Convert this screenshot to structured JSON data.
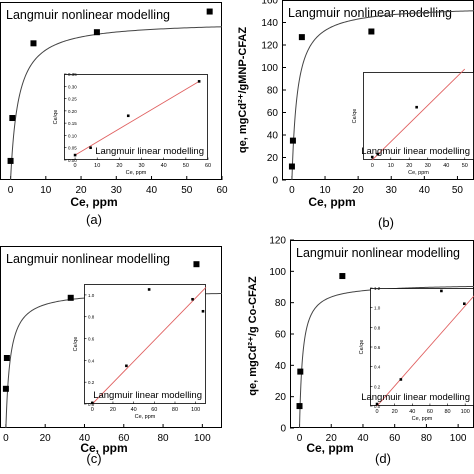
{
  "chart_data": [
    {
      "type": "scatter",
      "panel_label": "(a)",
      "title": "Langmuir nonlinear modelling",
      "xlabel": "Ce, ppm",
      "ylabel": "",
      "xlim": [
        -3,
        60
      ],
      "ylim": [
        0,
        1.12
      ],
      "xticks": [
        "0",
        "10",
        "20",
        "30",
        "40",
        "50",
        "60"
      ],
      "yticks": [],
      "series": [
        {
          "kind": "points",
          "x": [
            0,
            0.5,
            6.5,
            24.5,
            56.5
          ],
          "y": [
            0.12,
            0.39,
            0.86,
            0.93,
            1.06
          ]
        },
        {
          "kind": "model-curve",
          "qmax": 1.0,
          "KL": 0.45
        }
      ],
      "inset": {
        "title": "Langmuir linear modelling",
        "xlabel": "Ce, ppm",
        "ylabel": "Ce/qe",
        "xlim": [
          -5,
          60
        ],
        "ylim": [
          0,
          0.35
        ],
        "xticks": [
          "0",
          "10",
          "20",
          "30",
          "40",
          "50",
          "60"
        ],
        "yticks": [
          "0.00",
          "0.05",
          "0.10",
          "0.15",
          "0.20",
          "0.25",
          "0.30",
          "0.35"
        ],
        "points": {
          "x": [
            0,
            7,
            24,
            56
          ],
          "y": [
            0.02,
            0.05,
            0.18,
            0.32
          ]
        },
        "fit": {
          "x": [
            0,
            56
          ],
          "y": [
            0.02,
            0.32
          ]
        }
      }
    },
    {
      "type": "scatter",
      "panel_label": "(b)",
      "title": "Langmuir nonlinear modelling",
      "xlabel": "Ce, ppm",
      "ylabel": "qe, mgCd²⁺/gMNP-CFAZ",
      "xlim": [
        -3,
        55
      ],
      "ylim": [
        0,
        160
      ],
      "xticks": [
        "0",
        "10",
        "20",
        "30",
        "40",
        "50"
      ],
      "yticks": [
        "0",
        "20",
        "40",
        "60",
        "80",
        "100",
        "120",
        "140",
        "160"
      ],
      "series": [
        {
          "kind": "points",
          "x": [
            0,
            0.3,
            3,
            24
          ],
          "y": [
            12,
            35,
            127,
            132
          ]
        },
        {
          "kind": "model-curve",
          "qmax": 155,
          "KL": 0.6
        }
      ],
      "inset": {
        "title": "Langmuir linear modelling",
        "xlabel": "Ce, ppm",
        "ylabel": "Ce/qe",
        "xlim": [
          -5,
          55
        ],
        "ylim": [
          0,
          0.3
        ],
        "xticks": [
          "0",
          "10",
          "20",
          "30",
          "40",
          "50"
        ],
        "yticks": [],
        "points": {
          "x": [
            0,
            3,
            24
          ],
          "y": [
            0.01,
            0.02,
            0.18
          ]
        },
        "fit": {
          "x": [
            0,
            50
          ],
          "y": [
            0.0,
            0.31
          ]
        }
      }
    },
    {
      "type": "scatter",
      "panel_label": "(c)",
      "title": "Langmuir nonlinear modelling",
      "xlabel": "Ce, ppm",
      "ylabel": "",
      "xlim": [
        -3,
        110
      ],
      "ylim": [
        0,
        1.3
      ],
      "xticks": [
        "0",
        "20",
        "40",
        "60",
        "80",
        "100"
      ],
      "yticks": [],
      "series": [
        {
          "kind": "points",
          "x": [
            0,
            0.5,
            33,
            97
          ],
          "y": [
            0.28,
            0.5,
            0.93,
            1.17
          ]
        },
        {
          "kind": "model-curve",
          "qmax": 0.98,
          "KL": 0.45
        }
      ],
      "inset": {
        "title": "Langmuir linear modelling",
        "xlabel": "Ce, ppm",
        "ylabel": "Ce/qe",
        "xlim": [
          -8,
          110
        ],
        "ylim": [
          0,
          1.1
        ],
        "xticks": [
          "0",
          "20",
          "40",
          "60",
          "80",
          "100"
        ],
        "yticks": [
          "0.0",
          "0.2",
          "0.4",
          "0.6",
          "0.8",
          "1.0"
        ],
        "points": {
          "x": [
            0,
            33,
            55,
            97,
            112
          ],
          "y": [
            0.01,
            0.35,
            1.05,
            0.96,
            0.85
          ]
        },
        "fit": {
          "x": [
            0,
            110
          ],
          "y": [
            0.0,
            1.07
          ]
        }
      }
    },
    {
      "type": "scatter",
      "panel_label": "(d)",
      "title": "Langmuir nonlinear modelling",
      "xlabel": "Ce, ppm",
      "ylabel": "qe, mgCd²⁺/g Co-CFAZ",
      "xlim": [
        -6,
        110
      ],
      "ylim": [
        0,
        120
      ],
      "xticks": [
        "0",
        "20",
        "40",
        "60",
        "80",
        "100"
      ],
      "yticks": [
        "0",
        "20",
        "40",
        "60",
        "80",
        "100",
        "120"
      ],
      "series": [
        {
          "kind": "points",
          "x": [
            0,
            0.5,
            27
          ],
          "y": [
            14,
            36,
            97
          ]
        },
        {
          "kind": "model-curve",
          "qmax": 92,
          "KL": 0.5
        }
      ],
      "inset": {
        "title": "Langmuir linear modelling",
        "xlabel": "Ce, ppm",
        "ylabel": "Ce/qe",
        "xlim": [
          -8,
          110
        ],
        "ylim": [
          0,
          1.2
        ],
        "xticks": [
          "0",
          "20",
          "40",
          "60",
          "80",
          "100"
        ],
        "yticks": [
          "0.0",
          "0.2",
          "0.4",
          "0.6",
          "0.8",
          "1.0",
          "1.2"
        ],
        "points": {
          "x": [
            0,
            27,
            73,
            99
          ],
          "y": [
            0.02,
            0.27,
            1.17,
            1.04
          ]
        },
        "fit": {
          "x": [
            0,
            110
          ],
          "y": [
            0.0,
            1.12
          ]
        }
      }
    }
  ]
}
